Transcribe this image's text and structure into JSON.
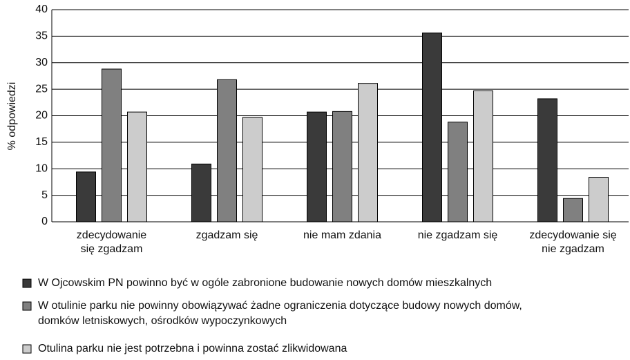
{
  "chart_data": {
    "type": "bar",
    "ylabel": "% odpowiedzi",
    "categories": [
      "zdecydowanie\nsię zgadzam",
      "zgadzam się",
      "nie mam zdania",
      "nie zgadzam się",
      "zdecydowanie się\nnie zgadzam"
    ],
    "series": [
      {
        "name": "W Ojcowskim PN powinno być w ogóle zabronione budowanie nowych domów mieszkalnych",
        "color": "#3a3a3a",
        "values": [
          9.4,
          10.9,
          20.7,
          35.6,
          23.2
        ]
      },
      {
        "name": "W otulinie parku nie powinny obowiązywać żadne ograniczenia dotyczące budowy nowych domów,\ndomków letniskowych, ośrodków wypoczynkowych",
        "color": "#808080",
        "values": [
          28.8,
          26.8,
          20.8,
          18.8,
          4.4
        ]
      },
      {
        "name": "Otulina parku nie jest potrzebna i powinna zostać zlikwidowana",
        "color": "#cccccc",
        "values": [
          20.7,
          19.7,
          26.1,
          24.7,
          8.4
        ]
      }
    ],
    "ylim": [
      0,
      40
    ],
    "yticks": [
      0,
      5,
      10,
      15,
      20,
      25,
      30,
      35,
      40
    ],
    "grid": true,
    "legend": "bottom"
  }
}
